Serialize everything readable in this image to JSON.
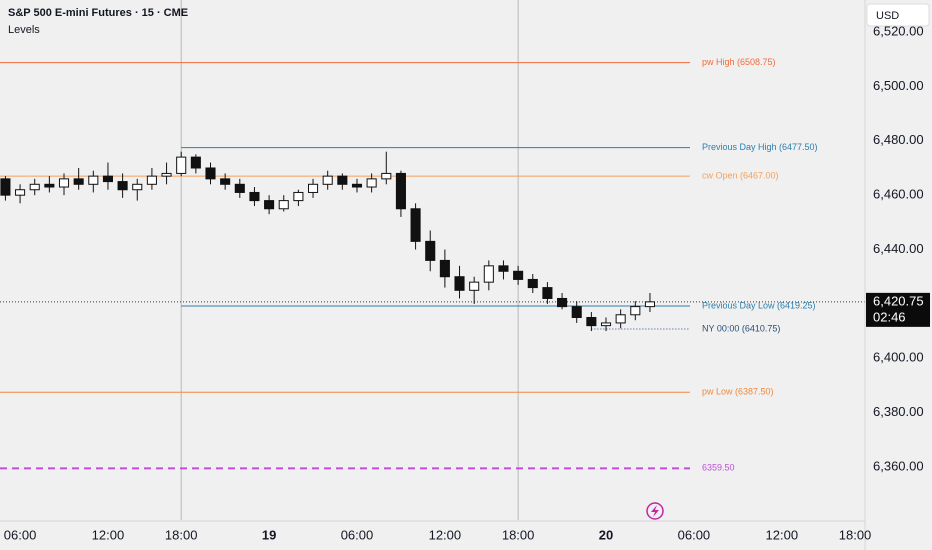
{
  "chart_data": {
    "type": "candlestick",
    "title": "S&P 500 E-mini Futures · 15 · CME",
    "subtitle": "Levels",
    "currency": "USD",
    "x": [
      -1,
      0,
      1,
      2,
      3,
      4,
      5,
      6,
      7,
      8,
      9,
      10,
      11,
      12,
      13,
      14,
      15,
      16,
      17,
      18,
      19,
      20,
      21,
      22,
      23,
      24,
      25,
      26,
      27,
      28,
      29,
      30,
      31,
      32,
      33,
      34,
      35,
      36,
      37,
      38,
      39,
      40,
      41,
      42,
      43
    ],
    "open": [
      6466,
      6460,
      6462,
      6464,
      6463,
      6466,
      6464,
      6467,
      6465,
      6462,
      6464,
      6467,
      6468,
      6474,
      6470,
      6466,
      6464,
      6461,
      6458,
      6455,
      6458,
      6461,
      6464,
      6467,
      6464,
      6463,
      6466,
      6468,
      6455,
      6443,
      6436,
      6430,
      6425,
      6428,
      6434,
      6432,
      6429,
      6426,
      6422,
      6419,
      6415,
      6412,
      6413,
      6416,
      6419
    ],
    "high": [
      6467,
      6464,
      6466,
      6467,
      6468,
      6470,
      6469,
      6472,
      6468,
      6466,
      6470,
      6472,
      6476,
      6475,
      6472,
      6468,
      6466,
      6463,
      6460,
      6460,
      6462,
      6466,
      6469,
      6468,
      6466,
      6468,
      6476,
      6469,
      6457,
      6447,
      6440,
      6434,
      6430,
      6436,
      6436,
      6434,
      6431,
      6428,
      6424,
      6421,
      6417,
      6415,
      6418,
      6421,
      6424
    ],
    "low": [
      6458,
      6457,
      6460,
      6461,
      6460,
      6462,
      6461,
      6462,
      6459,
      6458,
      6462,
      6464,
      6467,
      6468,
      6464,
      6462,
      6459,
      6456,
      6453,
      6454,
      6456,
      6459,
      6462,
      6462,
      6461,
      6461,
      6464,
      6452,
      6440,
      6432,
      6426,
      6422,
      6420,
      6425,
      6429,
      6427,
      6424,
      6420,
      6418,
      6413,
      6410,
      6410,
      6411,
      6414,
      6417
    ],
    "close": [
      6460,
      6462,
      6464,
      6463,
      6466,
      6464,
      6467,
      6465,
      6462,
      6464,
      6467,
      6468,
      6474,
      6470,
      6466,
      6464,
      6461,
      6458,
      6455,
      6458,
      6461,
      6464,
      6467,
      6464,
      6463,
      6466,
      6468,
      6455,
      6443,
      6436,
      6430,
      6425,
      6428,
      6434,
      6432,
      6429,
      6426,
      6422,
      6419,
      6415,
      6412,
      6413,
      6416,
      6419,
      6420.75
    ],
    "levels": [
      {
        "label": "pw High (6508.75)",
        "value": 6508.75,
        "color": "#f26b3a",
        "style": "solid",
        "from": -1.37
      },
      {
        "label": "Previous Day High (6477.50)",
        "value": 6477.5,
        "color": "#2a7fb0",
        "style": "solid",
        "from": 11
      },
      {
        "label": "cw Open (6467.00)",
        "value": 6467,
        "color": "#f5a05a",
        "style": "solid",
        "from": -1.37
      },
      {
        "label": "Previous Day Low (6419.25)",
        "value": 6419.25,
        "color": "#2a7fb0",
        "style": "solid",
        "from": 11
      },
      {
        "label": "NY 00:00 (6410.75)",
        "value": 6410.75,
        "color": "#2a4f7a",
        "style": "dotted",
        "from": 39
      },
      {
        "label": "pw Low (6387.50)",
        "value": 6387.5,
        "color": "#f0883e",
        "style": "solid",
        "from": -1.37
      },
      {
        "label": "6359.50",
        "value": 6359.5,
        "color": "#c04ddc",
        "style": "dashed",
        "from": -1.37
      }
    ],
    "last_price": {
      "value": 6420.75,
      "label": "6,420.75"
    },
    "countdown": "02:46",
    "ylim": [
      6340.5,
      6531.8
    ],
    "yticks": [
      {
        "value": 6360,
        "label": "6,360.00"
      },
      {
        "value": 6380,
        "label": "6,380.00"
      },
      {
        "value": 6400,
        "label": "6,400.00"
      },
      {
        "value": 6420,
        "label": "6,420.00"
      },
      {
        "value": 6440,
        "label": "6,440.00"
      },
      {
        "value": 6460,
        "label": "6,460.00"
      },
      {
        "value": 6480,
        "label": "6,480.00"
      },
      {
        "value": 6500,
        "label": "6,500.00"
      },
      {
        "value": 6520,
        "label": "6,520.00"
      }
    ],
    "xlim": [
      -1.37,
      57.68
    ],
    "xticks": [
      {
        "value": 0,
        "label": "06:00"
      },
      {
        "value": 6,
        "label": "12:00"
      },
      {
        "value": 11,
        "label": "18:00"
      },
      {
        "value": 17,
        "label": "19"
      },
      {
        "value": 23,
        "label": "06:00"
      },
      {
        "value": 29,
        "label": "12:00"
      },
      {
        "value": 34,
        "label": "18:00"
      },
      {
        "value": 40,
        "label": "20"
      },
      {
        "value": 46,
        "label": "06:00"
      },
      {
        "value": 52,
        "label": "12:00"
      },
      {
        "value": 57,
        "label": "18:00"
      }
    ]
  }
}
